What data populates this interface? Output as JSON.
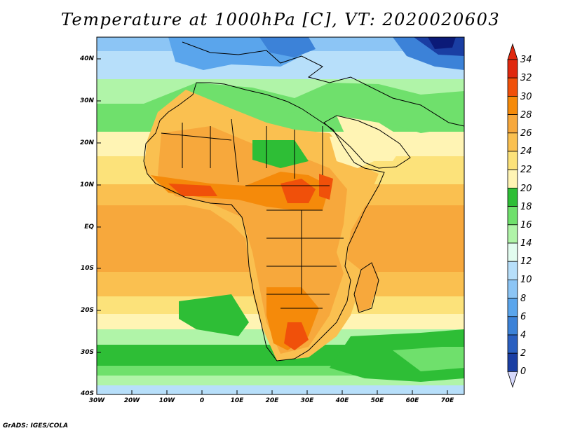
{
  "title": "Temperature at 1000hPa [C], VT: 2020020603",
  "credit": "GrADS: IGES/COLA",
  "lat_labels": [
    "40N",
    "30N",
    "20N",
    "10N",
    "EQ",
    "10S",
    "20S",
    "30S",
    "40S"
  ],
  "lon_labels": [
    "30W",
    "20W",
    "10W",
    "0",
    "10E",
    "20E",
    "30E",
    "40E",
    "50E",
    "60E",
    "70E"
  ],
  "colorbar": {
    "labels": [
      "34",
      "32",
      "30",
      "28",
      "26",
      "24",
      "22",
      "20",
      "18",
      "16",
      "14",
      "12",
      "10",
      "8",
      "6",
      "4",
      "2",
      "0"
    ],
    "colors": [
      "#e0280e",
      "#f0500a",
      "#f58a0a",
      "#f7a83c",
      "#fac050",
      "#fce27a",
      "#fff4b4",
      "#2ebe36",
      "#6fe06c",
      "#b0f4a8",
      "#e2fcef",
      "#b7dffa",
      "#8cc5f5",
      "#5aa5ec",
      "#3c82d8",
      "#2a5fc0",
      "#1a3ea3",
      "#0b1a78"
    ],
    "over_color": "#e0280e",
    "under_color": "#d6d8fa"
  }
}
